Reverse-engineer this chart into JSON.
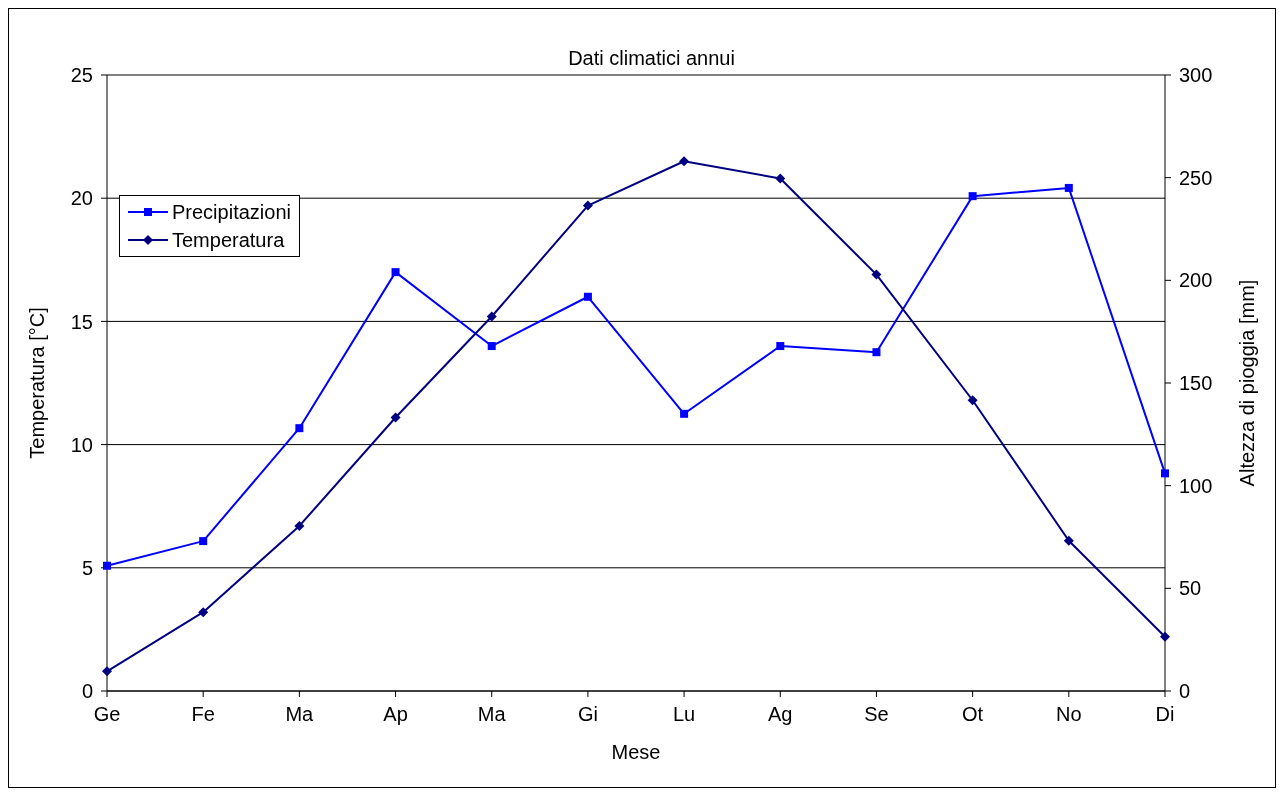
{
  "chart_data": {
    "type": "line",
    "title": "Dati climatici annui",
    "xlabel": "Mese",
    "ylabel": "Temperatura [°C]",
    "y2label": "Altezza di pioggia [mm]",
    "categories": [
      "Ge",
      "Fe",
      "Ma",
      "Ap",
      "Ma",
      "Gi",
      "Lu",
      "Ag",
      "Se",
      "Ot",
      "No",
      "Di"
    ],
    "series": [
      {
        "name": "Precipitazioni",
        "color": "#0000ff",
        "axis": "y2",
        "marker": "square",
        "values": [
          61,
          73,
          128,
          204,
          168,
          192,
          135,
          168,
          165,
          241,
          245,
          106
        ]
      },
      {
        "name": "Temperatura",
        "color": "#000080",
        "marker": "diamond",
        "values": [
          0.8,
          3.2,
          6.7,
          11.1,
          15.2,
          19.7,
          21.5,
          20.8,
          16.9,
          11.8,
          6.1,
          2.2
        ]
      }
    ],
    "ylim": [
      0,
      25
    ],
    "yticks": [
      0,
      5,
      10,
      15,
      20,
      25
    ],
    "y2lim": [
      0,
      300
    ],
    "y2ticks": [
      0,
      50,
      100,
      150,
      200,
      250,
      300
    ],
    "grid": "y",
    "legend": "top left"
  }
}
